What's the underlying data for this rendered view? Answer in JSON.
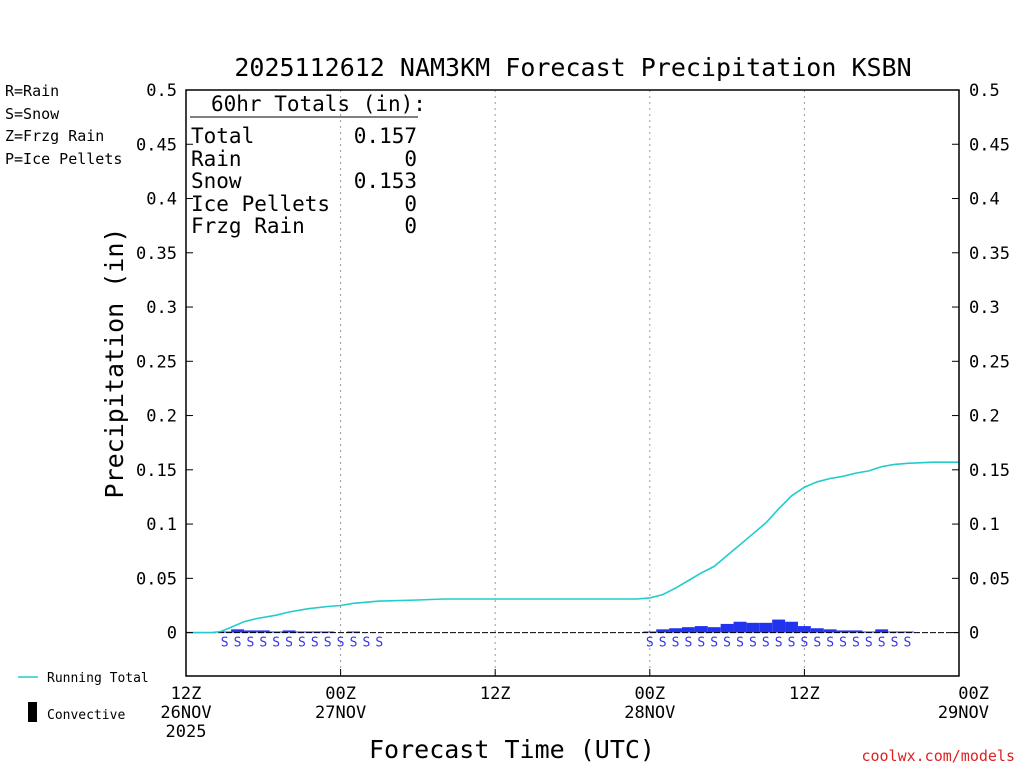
{
  "chart_data": {
    "type": "bar",
    "title": "2025112612 NAM3KM Forecast Precipitation KSBN",
    "xlabel": "Forecast Time (UTC)",
    "ylabel": "Precipitation (in)",
    "ylim": [
      -0.04,
      0.5
    ],
    "xlim": [
      0,
      60
    ],
    "yticks": [
      0,
      0.05,
      0.1,
      0.15,
      0.2,
      0.25,
      0.3,
      0.35,
      0.4,
      0.45,
      0.5
    ],
    "ytick_labels": [
      "0",
      "0.05",
      "0.1",
      "0.15",
      "0.2",
      "0.25",
      "0.3",
      "0.35",
      "0.4",
      "0.45",
      "0.5"
    ],
    "xticks": [
      {
        "hour": 0,
        "lines": [
          "12Z",
          "26NOV",
          "2025"
        ]
      },
      {
        "hour": 12,
        "lines": [
          "00Z",
          "27NOV"
        ]
      },
      {
        "hour": 24,
        "lines": [
          "12Z"
        ]
      },
      {
        "hour": 36,
        "lines": [
          "00Z",
          "28NOV"
        ]
      },
      {
        "hour": 48,
        "lines": [
          "12Z"
        ]
      },
      {
        "hour": 60,
        "lines": [
          "00Z",
          "29NOV"
        ]
      }
    ],
    "grid_hours": [
      12,
      24,
      36,
      48
    ],
    "precip_type_legend": [
      {
        "label": "R=Rain",
        "color": "#22dd22"
      },
      {
        "label": "S=Snow",
        "color": "#3333ee"
      },
      {
        "label": "Z=Frzg Rain",
        "color": "#ee8833"
      },
      {
        "label": "P=Ice Pellets",
        "color": "#ee2299"
      }
    ],
    "series_legend": {
      "running_total": "Running Total",
      "convective": "Convective"
    },
    "totals": {
      "header": "60hr Totals (in):",
      "rows": [
        {
          "label": "Total",
          "value": "0.157"
        },
        {
          "label": "Rain",
          "value": "0"
        },
        {
          "label": "Snow",
          "value": "0.153"
        },
        {
          "label": "Ice Pellets",
          "value": "0"
        },
        {
          "label": "Frzg Rain",
          "value": "0"
        }
      ]
    },
    "series": [
      {
        "name": "Hourly Precipitation",
        "color": "#2233ee",
        "bars": [
          {
            "hour": 3,
            "value": 0.001
          },
          {
            "hour": 4,
            "value": 0.003
          },
          {
            "hour": 5,
            "value": 0.002
          },
          {
            "hour": 6,
            "value": 0.002
          },
          {
            "hour": 7,
            "value": 0.001
          },
          {
            "hour": 8,
            "value": 0.002
          },
          {
            "hour": 9,
            "value": 0.001
          },
          {
            "hour": 10,
            "value": 0.001
          },
          {
            "hour": 11,
            "value": 0.001
          },
          {
            "hour": 13,
            "value": 0.001
          },
          {
            "hour": 36,
            "value": 0.001
          },
          {
            "hour": 37,
            "value": 0.003
          },
          {
            "hour": 38,
            "value": 0.004
          },
          {
            "hour": 39,
            "value": 0.005
          },
          {
            "hour": 40,
            "value": 0.006
          },
          {
            "hour": 41,
            "value": 0.005
          },
          {
            "hour": 42,
            "value": 0.008
          },
          {
            "hour": 43,
            "value": 0.01
          },
          {
            "hour": 44,
            "value": 0.009
          },
          {
            "hour": 45,
            "value": 0.009
          },
          {
            "hour": 46,
            "value": 0.012
          },
          {
            "hour": 47,
            "value": 0.01
          },
          {
            "hour": 48,
            "value": 0.006
          },
          {
            "hour": 49,
            "value": 0.004
          },
          {
            "hour": 50,
            "value": 0.003
          },
          {
            "hour": 51,
            "value": 0.002
          },
          {
            "hour": 52,
            "value": 0.002
          },
          {
            "hour": 53,
            "value": 0.001
          },
          {
            "hour": 54,
            "value": 0.003
          },
          {
            "hour": 55,
            "value": 0.001
          },
          {
            "hour": 56,
            "value": 0.001
          }
        ]
      },
      {
        "name": "Running Total",
        "color": "#22cccc",
        "x": [
          0,
          2,
          2.7,
          3.5,
          4.5,
          5.5,
          7,
          8,
          9.5,
          11,
          12,
          13,
          15,
          18,
          20,
          24,
          30,
          35,
          36,
          37,
          38,
          39,
          40,
          41,
          42,
          43,
          44,
          45,
          46,
          47,
          48,
          49,
          50,
          51,
          52,
          53,
          54,
          55,
          56,
          58,
          60
        ],
        "y": [
          0,
          0,
          0.001,
          0.005,
          0.01,
          0.013,
          0.016,
          0.019,
          0.022,
          0.024,
          0.025,
          0.027,
          0.029,
          0.03,
          0.031,
          0.031,
          0.031,
          0.031,
          0.032,
          0.035,
          0.041,
          0.048,
          0.055,
          0.061,
          0.071,
          0.081,
          0.091,
          0.101,
          0.114,
          0.126,
          0.134,
          0.139,
          0.142,
          0.144,
          0.147,
          0.149,
          0.153,
          0.155,
          0.156,
          0.157,
          0.157
        ]
      }
    ],
    "snow_marker_hours": [
      3,
      4,
      5,
      6,
      7,
      8,
      9,
      10,
      11,
      12,
      13,
      14,
      15,
      36,
      37,
      38,
      39,
      40,
      41,
      42,
      43,
      44,
      45,
      46,
      47,
      48,
      49,
      50,
      51,
      52,
      53,
      54,
      55,
      56
    ],
    "snow_marker_label": "S"
  },
  "footer": {
    "site": "coolwx.com/models"
  },
  "colors": {
    "zero_line": "#000000",
    "grid": "#999999"
  }
}
